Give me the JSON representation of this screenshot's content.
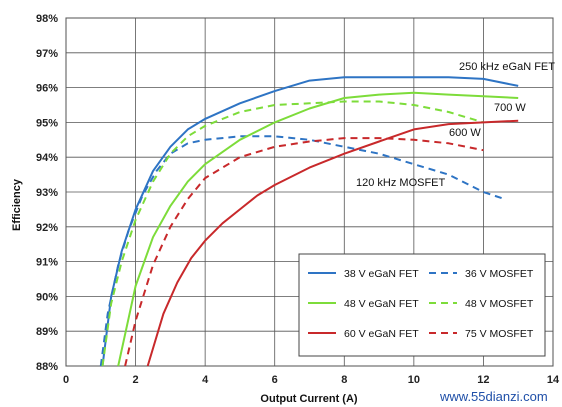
{
  "chart_data": {
    "type": "line",
    "title": "",
    "xlabel": "Output Current (A)",
    "ylabel": "Efficiency",
    "xlim": [
      0,
      14
    ],
    "ylim": [
      88,
      98
    ],
    "x_ticks": [
      "0",
      "2",
      "4",
      "6",
      "8",
      "10",
      "12",
      "14"
    ],
    "y_ticks": [
      "88%",
      "89%",
      "90%",
      "91%",
      "92%",
      "93%",
      "94%",
      "95%",
      "96%",
      "97%",
      "98%"
    ],
    "grid": true,
    "legend_position": "bottom-right",
    "annotations": [
      "250 kHz eGaN FET",
      "700 W",
      "600 W",
      "120 kHz MOSFET"
    ],
    "watermark": "www.55dianzi.com",
    "series": [
      {
        "name": "38 V eGaN FET",
        "color": "#2e74c4",
        "dash": false,
        "x": [
          1.05,
          1.3,
          1.6,
          2.0,
          2.5,
          3.0,
          3.5,
          4.0,
          5.0,
          6.0,
          7.0,
          8.0,
          9.0,
          10.0,
          11.0,
          12.0,
          13.0
        ],
        "y": [
          88.0,
          90.0,
          91.3,
          92.5,
          93.6,
          94.3,
          94.8,
          95.1,
          95.55,
          95.9,
          96.2,
          96.3,
          96.3,
          96.3,
          96.3,
          96.25,
          96.05
        ]
      },
      {
        "name": "36 V MOSFET",
        "color": "#2e74c4",
        "dash": true,
        "x": [
          1.0,
          1.2,
          1.5,
          1.8,
          2.2,
          2.6,
          3.0,
          3.5,
          4.0,
          5.0,
          6.0,
          7.0,
          8.0,
          9.0,
          10.0,
          11.0,
          12.0,
          12.6
        ],
        "y": [
          88.0,
          89.5,
          90.9,
          91.9,
          92.9,
          93.6,
          94.1,
          94.4,
          94.5,
          94.6,
          94.6,
          94.5,
          94.3,
          94.1,
          93.8,
          93.5,
          93.0,
          92.8
        ]
      },
      {
        "name": "48 V eGaN FET",
        "color": "#7ddc3a",
        "dash": false,
        "x": [
          1.5,
          2.0,
          2.5,
          3.0,
          3.5,
          4.0,
          5.0,
          6.0,
          7.0,
          8.0,
          9.0,
          10.0,
          11.0,
          12.0,
          13.0
        ],
        "y": [
          88.0,
          90.3,
          91.7,
          92.6,
          93.3,
          93.8,
          94.5,
          95.0,
          95.4,
          95.7,
          95.8,
          95.85,
          95.8,
          95.75,
          95.7
        ]
      },
      {
        "name": "48 V MOSFET",
        "color": "#7ddc3a",
        "dash": true,
        "x": [
          1.05,
          1.3,
          1.6,
          2.0,
          2.5,
          3.0,
          3.5,
          4.0,
          5.0,
          6.0,
          7.0,
          8.0,
          9.0,
          10.0,
          11.0,
          12.0
        ],
        "y": [
          88.0,
          89.8,
          91.0,
          92.2,
          93.3,
          94.1,
          94.6,
          94.9,
          95.3,
          95.5,
          95.55,
          95.6,
          95.6,
          95.5,
          95.3,
          95.0
        ]
      },
      {
        "name": "60 V eGaN FET",
        "color": "#c8292b",
        "dash": false,
        "x": [
          2.35,
          2.8,
          3.2,
          3.6,
          4.0,
          4.5,
          5.0,
          5.5,
          6.0,
          7.0,
          8.0,
          9.0,
          10.0,
          11.0,
          12.0,
          13.0
        ],
        "y": [
          88.0,
          89.5,
          90.4,
          91.1,
          91.6,
          92.1,
          92.5,
          92.9,
          93.2,
          93.7,
          94.1,
          94.45,
          94.8,
          94.95,
          95.0,
          95.05
        ]
      },
      {
        "name": "75 V MOSFET",
        "color": "#c8292b",
        "dash": true,
        "x": [
          1.7,
          2.0,
          2.5,
          3.0,
          3.5,
          4.0,
          5.0,
          6.0,
          7.0,
          8.0,
          9.0,
          10.0,
          11.0,
          12.0
        ],
        "y": [
          88.0,
          89.3,
          90.9,
          92.0,
          92.8,
          93.4,
          94.0,
          94.3,
          94.45,
          94.55,
          94.55,
          94.5,
          94.4,
          94.2
        ]
      }
    ]
  }
}
